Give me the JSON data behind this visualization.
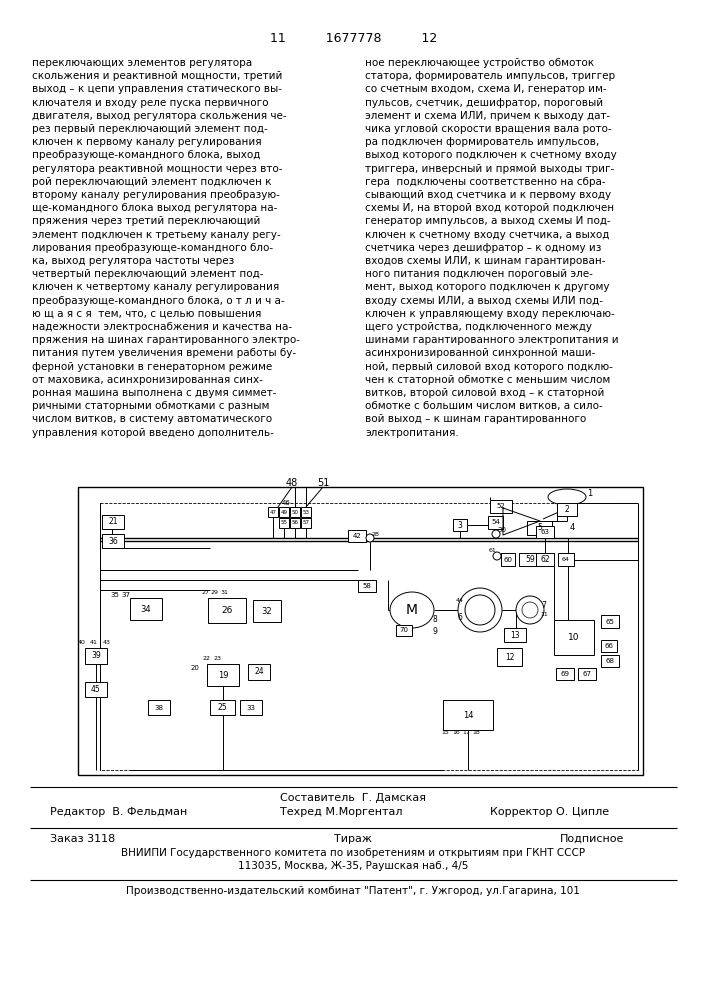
{
  "page_header": "11          1677778          12",
  "col1_text": [
    "переключающих элементов регулятора",
    "скольжения и реактивной мощности, третий",
    "выход – к цепи управления статического вы-",
    "ключателя и входу реле пуска первичного",
    "двигателя, выход регулятора скольжения че-",
    "рез первый переключающий элемент под-",
    "ключен к первому каналу регулирования",
    "преобразующе-командного блока, выход",
    "регулятора реактивной мощности через вто-",
    "рой переключающий элемент подключен к",
    "второму каналу регулирования преобразую-",
    "ще-командного блока выход регулятора на-",
    "пряжения через третий переключающий",
    "элемент подключен к третьему каналу регу-",
    "лирования преобразующе-командного бло-",
    "ка, выход регулятора частоты через",
    "четвертый переключающий элемент под-",
    "ключен к четвертому каналу регулирования",
    "преобразующе-командного блока, о т л и ч а-",
    "ю щ а я с я  тем, что, с целью повышения",
    "надежности электроснабжения и качества на-",
    "пряжения на шинах гарантированного электро-",
    "питания путем увеличения времени работы бу-",
    "ферной установки в генераторном режиме",
    "от маховика, асинхронизированная синх-",
    "ронная машина выполнена с двумя симмет-",
    "ричными статорными обмотками с разным",
    "числом витков, в систему автоматического",
    "управления которой введено дополнитель-"
  ],
  "col2_text": [
    "ное переключающее устройство обмоток",
    "статора, формирователь импульсов, триггер",
    "со счетным входом, схема И, генератор им-",
    "пульсов, счетчик, дешифратор, пороговый",
    "элемент и схема ИЛИ, причем к выходу дат-",
    "чика угловой скорости вращения вала рото-",
    "ра подключен формирователь импульсов,",
    "выход которого подключен к счетному входу",
    "триггера, инверсный и прямой выходы триг-",
    "гера  подключены соответственно на сбра-",
    "сывающий вход счетчика и к первому входу",
    "схемы И, на второй вход которой подключен",
    "генератор импульсов, а выход схемы И под-",
    "ключен к счетному входу счетчика, а выход",
    "счетчика через дешифратор – к одному из",
    "входов схемы ИЛИ, к шинам гарантирован-",
    "ного питания подключен пороговый эле-",
    "мент, выход которого подключен к другому",
    "входу схемы ИЛИ, а выход схемы ИЛИ под-",
    "ключен к управляющему входу переключаю-",
    "щего устройства, подключенного между",
    "шинами гарантированного электропитания и",
    "асинхронизированной синхронной маши-",
    "ной, первый силовой вход которого подклю-",
    "чен к статорной обмотке с меньшим числом",
    "витков, второй силовой вход – к статорной",
    "обмотке с большим числом витков, а сило-",
    "вой выход – к шинам гарантированного",
    "электропитания."
  ],
  "footer_composer": "Составитель  Г. Дамская",
  "footer_editor": "Редактор  В. Фельдман",
  "footer_techred": "Техред М.Моргентал",
  "footer_corrector": "Корректор О. Ципле",
  "footer_order": "Заказ 3118",
  "footer_tirazh": "Тираж",
  "footer_podpisnoe": "Подписное",
  "footer_vniiipi": "ВНИИПИ Государственного комитета по изобретениям и открытиям при ГКНТ СССР",
  "footer_address": "113035, Москва, Ж-35, Раушская наб., 4/5",
  "footer_publisher": "Производственно-издательский комбинат \"Патент\", г. Ужгород, ул.Гагарина, 101",
  "bg_color": "#ffffff",
  "text_color": "#000000"
}
